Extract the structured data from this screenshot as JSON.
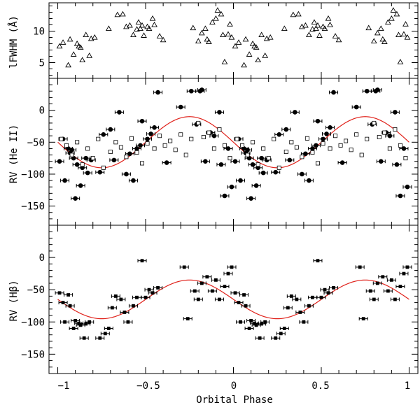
{
  "chart_data": {
    "type": "scatter",
    "xlabel": "Orbital Phase",
    "xlim": [
      -1.05,
      1.05
    ],
    "x_ticks": [
      -1,
      -0.5,
      0,
      0.5,
      1
    ],
    "x_tick_labels": [
      "−1",
      "−0.5",
      "0",
      "0.5",
      "1"
    ],
    "panels": [
      {
        "ylabel": "lFWHM (Å)",
        "ylim": [
          2.5,
          14.5
        ],
        "y_ticks": [
          5,
          10
        ],
        "y_tick_labels": [
          "5",
          "10"
        ],
        "series": [
          {
            "name": "lFWHM",
            "marker": "open-triangle",
            "x": [
              -0.99,
              -0.97,
              -0.94,
              -0.93,
              -0.91,
              -0.89,
              -0.88,
              -0.87,
              -0.86,
              -0.84,
              -0.82,
              -0.81,
              -0.79,
              -0.71,
              -0.66,
              -0.63,
              -0.61,
              -0.59,
              -0.57,
              -0.55,
              -0.54,
              -0.53,
              -0.52,
              -0.51,
              -0.49,
              -0.48,
              -0.46,
              -0.45,
              -0.42,
              -0.4,
              -0.23,
              -0.2,
              -0.18,
              -0.16,
              -0.15,
              -0.14,
              -0.12,
              -0.1,
              -0.09,
              -0.07,
              -0.06,
              -0.05,
              -0.03,
              -0.02,
              -0.01,
              0.01,
              0.03,
              0.06,
              0.07,
              0.09,
              0.11,
              0.12,
              0.13,
              0.14,
              0.16,
              0.18,
              0.19,
              0.21,
              0.29,
              0.34,
              0.37,
              0.39,
              0.41,
              0.43,
              0.45,
              0.46,
              0.47,
              0.48,
              0.49,
              0.51,
              0.52,
              0.54,
              0.55,
              0.58,
              0.6,
              0.77,
              0.8,
              0.82,
              0.84,
              0.85,
              0.86,
              0.88,
              0.9,
              0.91,
              0.93,
              0.94,
              0.95,
              0.97,
              0.98,
              0.99
            ],
            "y": [
              7.6,
              8.2,
              4.6,
              8.7,
              6.3,
              8.0,
              7.6,
              7.4,
              5.4,
              9.4,
              6.1,
              8.8,
              9.0,
              10.4,
              12.6,
              12.7,
              10.7,
              10.9,
              9.4,
              10.3,
              11.4,
              10.4,
              10.9,
              9.3,
              10.7,
              10.4,
              12.0,
              11.0,
              9.2,
              8.6,
              10.5,
              8.4,
              9.7,
              10.4,
              8.7,
              8.3,
              11.4,
              12.0,
              13.3,
              12.7,
              9.4,
              5.1,
              9.5,
              11.1,
              9.0,
              7.6,
              8.2,
              4.6,
              8.7,
              6.3,
              8.0,
              7.6,
              7.4,
              5.4,
              9.4,
              6.1,
              8.8,
              9.0,
              10.4,
              12.6,
              12.7,
              10.7,
              10.9,
              9.4,
              10.3,
              11.4,
              10.4,
              10.9,
              9.3,
              10.7,
              10.4,
              12.0,
              11.0,
              9.2,
              8.6,
              10.5,
              8.4,
              9.7,
              10.4,
              8.7,
              8.3,
              11.4,
              12.0,
              13.3,
              12.7,
              9.4,
              5.1,
              9.5,
              11.1,
              9.0
            ]
          }
        ]
      },
      {
        "ylabel": "RV (He II)",
        "ylim": [
          -180,
          50
        ],
        "y_ticks": [
          -150,
          -100,
          -50,
          0
        ],
        "y_tick_labels": [
          "−150",
          "−100",
          "−50",
          "0"
        ],
        "series": [
          {
            "name": "He II (filled circles)",
            "marker": "filled-circle",
            "x": [
              -0.99,
              -0.97,
              -0.96,
              -0.94,
              -0.93,
              -0.92,
              -0.91,
              -0.9,
              -0.89,
              -0.87,
              -0.86,
              -0.84,
              -0.83,
              -0.81,
              -0.76,
              -0.74,
              -0.7,
              -0.68,
              -0.65,
              -0.61,
              -0.59,
              -0.57,
              -0.55,
              -0.53,
              -0.52,
              -0.49,
              -0.47,
              -0.45,
              -0.43,
              -0.38,
              -0.3,
              -0.24,
              -0.21,
              -0.19,
              -0.18,
              -0.16,
              -0.13,
              -0.11,
              -0.08,
              -0.07,
              -0.05,
              -0.03,
              -0.01,
              0.01,
              0.03,
              0.04,
              0.06,
              0.07,
              0.08,
              0.09,
              0.1,
              0.11,
              0.13,
              0.14,
              0.16,
              0.17,
              0.19,
              0.24,
              0.26,
              0.3,
              0.32,
              0.35,
              0.39,
              0.41,
              0.43,
              0.45,
              0.47,
              0.48,
              0.51,
              0.53,
              0.55,
              0.57,
              0.62,
              0.7,
              0.76,
              0.79,
              0.81,
              0.82,
              0.84,
              0.87,
              0.89,
              0.92,
              0.93,
              0.95,
              0.97,
              0.99
            ],
            "y": [
              -80,
              -45,
              -110,
              -60,
              -67,
              -62,
              -75,
              -138,
              -85,
              -118,
              -90,
              -75,
              -98,
              -78,
              -97,
              -38,
              -30,
              -78,
              -3,
              -100,
              -68,
              -110,
              -60,
              -55,
              -17,
              -45,
              -37,
              -27,
              28,
              -82,
              5,
              30,
              -22,
              30,
              32,
              -80,
              -35,
              -40,
              -3,
              -85,
              -134,
              -60,
              -120,
              -80,
              -45,
              -110,
              -60,
              -67,
              -62,
              -75,
              -138,
              -85,
              -118,
              -90,
              -75,
              -98,
              -78,
              -97,
              -38,
              -30,
              -78,
              -3,
              -100,
              -68,
              -110,
              -60,
              -55,
              -17,
              -45,
              -37,
              -27,
              28,
              -82,
              5,
              30,
              -22,
              30,
              32,
              -80,
              -35,
              -40,
              -3,
              -85,
              -134,
              -60,
              -120
            ]
          },
          {
            "name": "He II (open squares)",
            "marker": "open-square",
            "x": [
              -0.98,
              -0.95,
              -0.92,
              -0.89,
              -0.86,
              -0.83,
              -0.8,
              -0.77,
              -0.74,
              -0.7,
              -0.67,
              -0.64,
              -0.61,
              -0.58,
              -0.55,
              -0.52,
              -0.49,
              -0.45,
              -0.42,
              -0.39,
              -0.36,
              -0.33,
              -0.3,
              -0.27,
              -0.24,
              -0.2,
              -0.17,
              -0.14,
              -0.11,
              -0.08,
              -0.05,
              -0.02,
              0.02,
              0.05,
              0.08,
              0.11,
              0.14,
              0.17,
              0.2,
              0.23,
              0.26,
              0.3,
              0.33,
              0.36,
              0.39,
              0.42,
              0.45,
              0.48,
              0.51,
              0.55,
              0.58,
              0.61,
              0.64,
              0.67,
              0.7,
              0.73,
              0.76,
              0.8,
              0.83,
              0.86,
              0.89,
              0.92,
              0.95,
              0.98
            ],
            "y": [
              -45,
              -55,
              -70,
              -50,
              -85,
              -60,
              -75,
              -45,
              -90,
              -65,
              -50,
              -58,
              -73,
              -44,
              -66,
              -83,
              -52,
              -60,
              -40,
              -55,
              -48,
              -62,
              -38,
              -70,
              -45,
              -20,
              -42,
              -35,
              -60,
              -30,
              -55,
              -75,
              -45,
              -55,
              -70,
              -50,
              -85,
              -60,
              -75,
              -45,
              -90,
              -65,
              -50,
              -58,
              -73,
              -44,
              -66,
              -83,
              -52,
              -60,
              -40,
              -55,
              -48,
              -62,
              -38,
              -70,
              -45,
              -20,
              -42,
              -35,
              -60,
              -30,
              -55,
              -75
            ]
          }
        ],
        "fit_curve": {
          "type": "sinusoid",
          "gamma": -50,
          "K": 40,
          "phase_of_max": -0.25,
          "color": "#e0211a"
        }
      },
      {
        "ylabel": "RV (Hβ)",
        "ylim": [
          -180,
          50
        ],
        "y_ticks": [
          -150,
          -100,
          -50,
          0
        ],
        "y_tick_labels": [
          "−150",
          "−100",
          "−50",
          "0"
        ],
        "series": [
          {
            "name": "Hβ",
            "marker": "filled-square",
            "x": [
              -0.99,
              -0.97,
              -0.96,
              -0.94,
              -0.93,
              -0.91,
              -0.9,
              -0.88,
              -0.87,
              -0.85,
              -0.84,
              -0.82,
              -0.76,
              -0.73,
              -0.71,
              -0.69,
              -0.67,
              -0.64,
              -0.62,
              -0.6,
              -0.57,
              -0.55,
              -0.52,
              -0.5,
              -0.48,
              -0.46,
              -0.43,
              -0.28,
              -0.26,
              -0.22,
              -0.2,
              -0.18,
              -0.15,
              -0.12,
              -0.1,
              -0.08,
              -0.05,
              -0.03,
              -0.01,
              0.01,
              0.03,
              0.04,
              0.06,
              0.07,
              0.09,
              0.1,
              0.12,
              0.13,
              0.15,
              0.16,
              0.18,
              0.24,
              0.27,
              0.29,
              0.31,
              0.33,
              0.36,
              0.38,
              0.4,
              0.43,
              0.45,
              0.48,
              0.5,
              0.52,
              0.54,
              0.57,
              0.72,
              0.74,
              0.78,
              0.8,
              0.82,
              0.85,
              0.88,
              0.9,
              0.92,
              0.95,
              0.97,
              0.99
            ],
            "y": [
              -55,
              -70,
              -100,
              -58,
              -75,
              -110,
              -98,
              -102,
              -105,
              -125,
              -103,
              -100,
              -125,
              -118,
              -110,
              -78,
              -60,
              -65,
              -85,
              -100,
              -75,
              -62,
              -5,
              -62,
              -50,
              -55,
              -47,
              -15,
              -95,
              -52,
              -65,
              -40,
              -30,
              -52,
              -35,
              -65,
              -45,
              -25,
              -15,
              -55,
              -70,
              -100,
              -58,
              -75,
              -110,
              -98,
              -102,
              -105,
              -125,
              -103,
              -100,
              -125,
              -118,
              -110,
              -78,
              -60,
              -65,
              -85,
              -100,
              -75,
              -62,
              -5,
              -62,
              -50,
              -55,
              -47,
              -15,
              -95,
              -52,
              -65,
              -40,
              -30,
              -52,
              -35,
              -65,
              -45,
              -25,
              -15
            ]
          }
        ],
        "fit_curve": {
          "type": "sinusoid",
          "gamma": -65,
          "K": 30,
          "phase_of_max": -0.25,
          "color": "#e0211a"
        }
      }
    ]
  }
}
